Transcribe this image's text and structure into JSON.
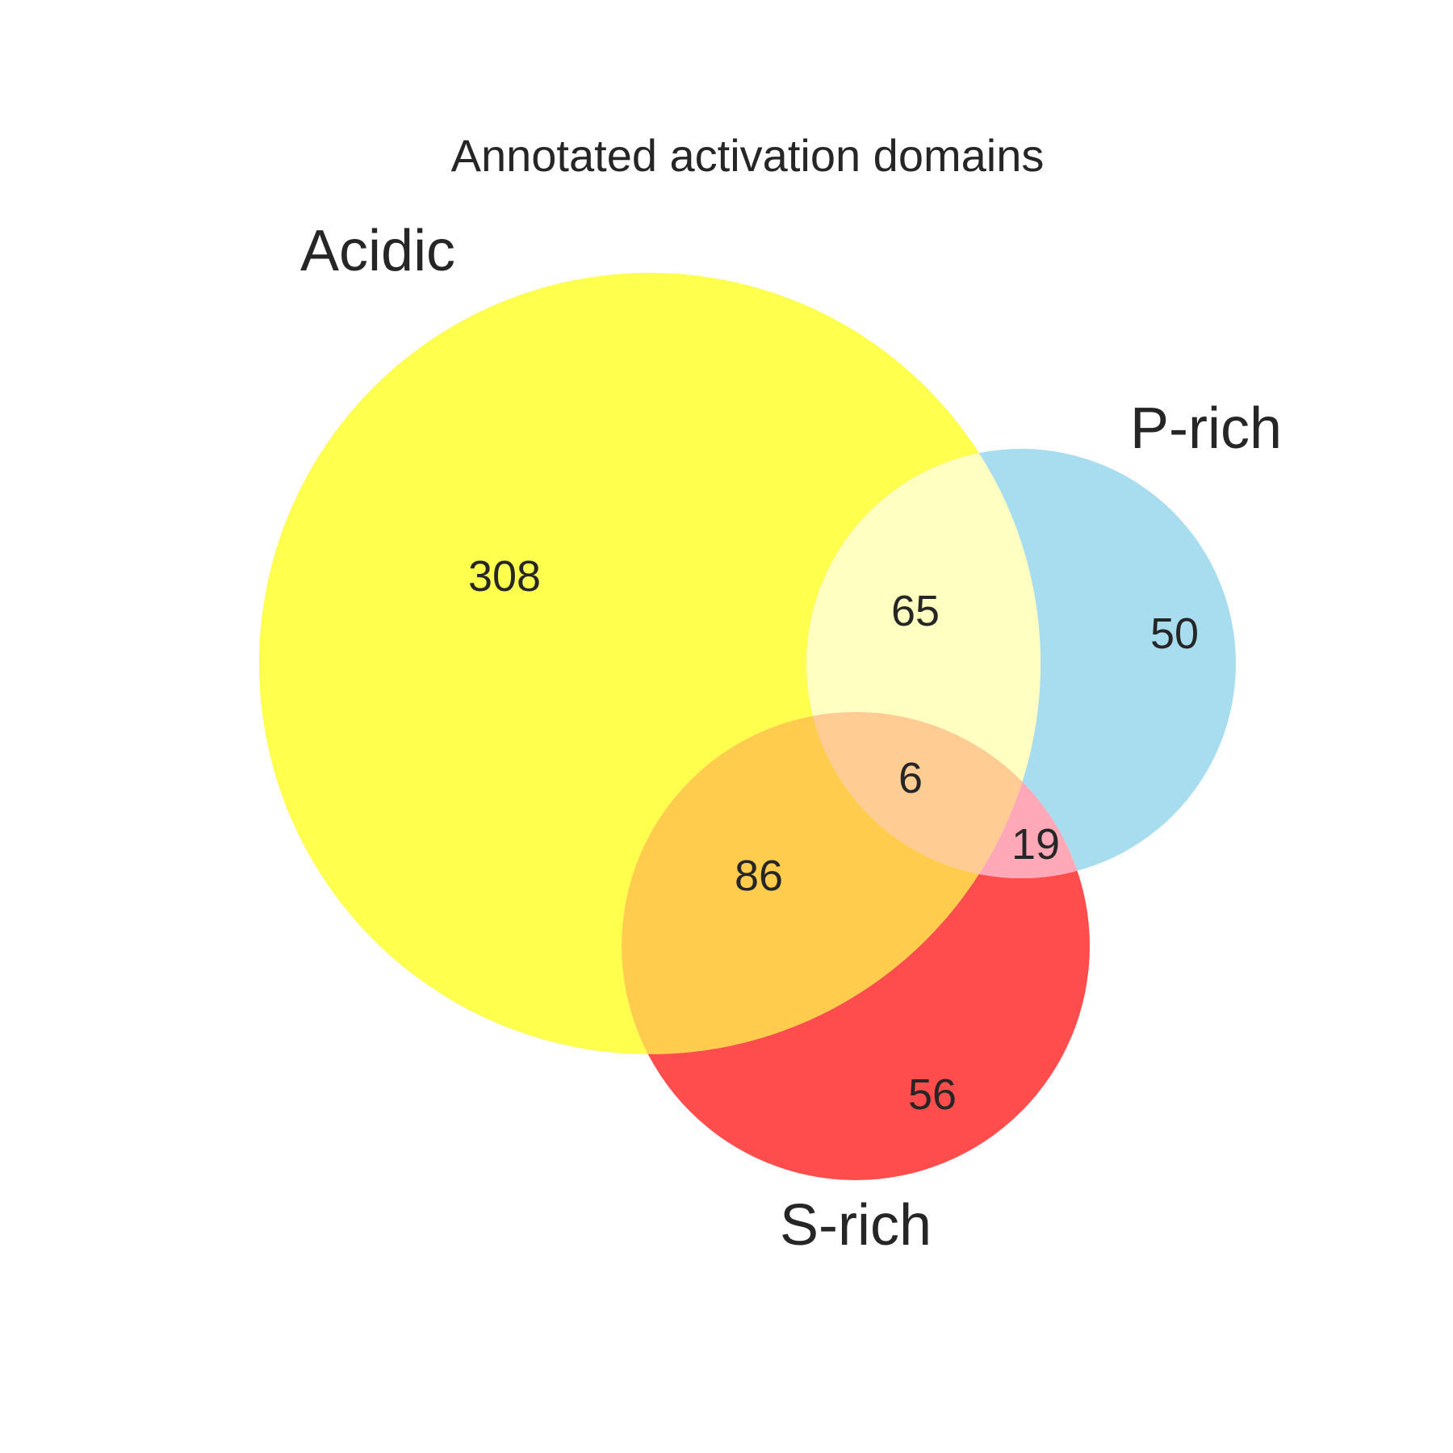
{
  "chart_data": {
    "type": "venn3",
    "title": "Annotated activation domains",
    "sets": [
      {
        "name": "Acidic",
        "color": "#ffff00"
      },
      {
        "name": "P-rich",
        "color": "#87ceeb"
      },
      {
        "name": "S-rich",
        "color": "#ff0000"
      }
    ],
    "regions": [
      {
        "sets": [
          "Acidic"
        ],
        "value": 308
      },
      {
        "sets": [
          "P-rich"
        ],
        "value": 50
      },
      {
        "sets": [
          "S-rich"
        ],
        "value": 56
      },
      {
        "sets": [
          "Acidic",
          "P-rich"
        ],
        "value": 65
      },
      {
        "sets": [
          "Acidic",
          "S-rich"
        ],
        "value": 86
      },
      {
        "sets": [
          "P-rich",
          "S-rich"
        ],
        "value": 19
      },
      {
        "sets": [
          "Acidic",
          "P-rich",
          "S-rich"
        ],
        "value": 6
      }
    ],
    "region_colors": {
      "acidic_only": "#ffff4d",
      "prich_only": "#a8dcef",
      "srich_only": "#ff4d4d",
      "acidic_prich": "#ffffc1",
      "acidic_srich": "#ffcc4d",
      "prich_srich": "#ffa9b8",
      "all": "#ffcc94"
    }
  }
}
